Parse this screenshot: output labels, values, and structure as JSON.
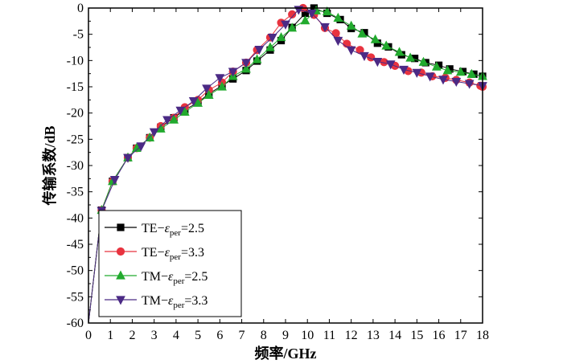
{
  "chart_data": {
    "type": "line",
    "xlabel": "频率/GHz",
    "ylabel": "传输系数/dB",
    "xlim": [
      0,
      18
    ],
    "ylim": [
      -60,
      0
    ],
    "xticks": [
      0,
      1,
      2,
      3,
      4,
      5,
      6,
      7,
      8,
      9,
      10,
      11,
      12,
      13,
      14,
      15,
      16,
      17,
      18
    ],
    "yticks": [
      0,
      -5,
      -10,
      -15,
      -20,
      -25,
      -30,
      -35,
      -40,
      -45,
      -50,
      -55,
      -60
    ],
    "grid": false,
    "legend_position": "bottom-left",
    "series": [
      {
        "name": "TE-εper=2.5",
        "legend": {
          "main": "TE−",
          "eps": "ε",
          "sub": "per",
          "value": "=2.5"
        },
        "color": "#000000",
        "marker": "square",
        "x": [
          0.0,
          0.6,
          1.1,
          1.8,
          2.2,
          2.8,
          3.3,
          3.9,
          4.4,
          5.0,
          5.5,
          6.1,
          6.6,
          7.2,
          7.7,
          8.3,
          8.8,
          9.3,
          9.9,
          10.3,
          10.9,
          11.5,
          12.0,
          12.6,
          13.2,
          13.7,
          14.3,
          14.9,
          15.4,
          16.0,
          16.5,
          17.1,
          17.6,
          18.0
        ],
        "y": [
          -60.0,
          -38.5,
          -33.0,
          -28.5,
          -26.7,
          -24.7,
          -22.7,
          -20.9,
          -19.4,
          -18.0,
          -16.3,
          -14.8,
          -13.5,
          -11.9,
          -10.1,
          -8.0,
          -6.2,
          -3.7,
          -1.0,
          0.0,
          -1.0,
          -2.2,
          -3.9,
          -4.7,
          -6.7,
          -7.4,
          -8.9,
          -9.6,
          -10.4,
          -10.9,
          -11.6,
          -12.1,
          -12.6,
          -13.0
        ]
      },
      {
        "name": "TE-εper=3.3",
        "legend": {
          "main": "TE−",
          "eps": "ε",
          "sub": "per",
          "value": "=3.3"
        },
        "color": "#e8333f",
        "marker": "circle",
        "x": [
          0.0,
          0.6,
          1.1,
          1.8,
          2.2,
          2.8,
          3.3,
          3.9,
          4.4,
          5.0,
          5.5,
          6.1,
          6.6,
          7.2,
          7.7,
          8.3,
          8.8,
          9.3,
          9.8,
          10.3,
          10.8,
          11.3,
          11.8,
          12.4,
          12.9,
          13.5,
          14.0,
          14.6,
          15.2,
          15.7,
          16.3,
          16.8,
          17.4,
          17.9,
          18.0
        ],
        "y": [
          -60.0,
          -38.5,
          -33.0,
          -28.5,
          -26.7,
          -24.7,
          -22.5,
          -20.9,
          -18.9,
          -17.5,
          -15.6,
          -14.2,
          -12.1,
          -10.4,
          -8.0,
          -5.6,
          -2.8,
          -1.2,
          0.0,
          -1.3,
          -3.8,
          -4.8,
          -6.8,
          -8.0,
          -9.4,
          -10.3,
          -11.0,
          -12.0,
          -12.3,
          -13.0,
          -13.3,
          -13.7,
          -14.2,
          -14.8,
          -15.0
        ]
      },
      {
        "name": "TM-εper=2.5",
        "legend": {
          "main": "TM−",
          "eps": "ε",
          "sub": "per",
          "value": "=2.5"
        },
        "color": "#22aa2e",
        "marker": "triangle-up",
        "x": [
          0.0,
          0.6,
          1.1,
          1.8,
          2.2,
          2.8,
          3.3,
          3.9,
          4.4,
          5.0,
          5.5,
          6.1,
          6.6,
          7.2,
          7.7,
          8.3,
          8.8,
          9.3,
          9.9,
          10.4,
          10.9,
          11.4,
          12.0,
          12.5,
          13.1,
          13.6,
          14.2,
          14.7,
          15.3,
          15.9,
          16.4,
          17.0,
          17.5,
          18.0
        ],
        "y": [
          -60.0,
          -38.5,
          -33.0,
          -28.5,
          -26.7,
          -24.7,
          -23.0,
          -21.3,
          -19.8,
          -18.1,
          -16.6,
          -15.0,
          -13.0,
          -11.6,
          -9.8,
          -7.5,
          -5.6,
          -3.8,
          -2.4,
          -0.5,
          -0.7,
          -1.9,
          -3.4,
          -4.9,
          -6.0,
          -7.2,
          -8.4,
          -9.5,
          -10.3,
          -11.2,
          -11.9,
          -12.2,
          -12.6,
          -13.0
        ]
      },
      {
        "name": "TM-εper=3.3",
        "legend": {
          "main": "TM−",
          "eps": "ε",
          "sub": "per",
          "value": "=3.3"
        },
        "color": "#4b2a85",
        "marker": "triangle-down",
        "x": [
          0.0,
          0.6,
          1.2,
          1.8,
          2.4,
          3.0,
          3.6,
          4.2,
          4.8,
          5.4,
          6.0,
          6.6,
          7.2,
          7.8,
          8.4,
          9.0,
          9.6,
          10.2,
          10.8,
          11.4,
          12.0,
          12.6,
          13.2,
          13.8,
          14.4,
          15.0,
          15.6,
          16.2,
          16.8,
          17.4,
          18.0
        ],
        "y": [
          -60.0,
          -38.6,
          -32.7,
          -28.5,
          -26.3,
          -23.6,
          -21.3,
          -19.5,
          -17.7,
          -15.3,
          -13.3,
          -12.1,
          -10.4,
          -7.9,
          -5.6,
          -3.1,
          -0.3,
          -1.0,
          -3.6,
          -6.2,
          -8.0,
          -9.1,
          -10.2,
          -10.7,
          -11.7,
          -12.3,
          -13.0,
          -13.6,
          -14.0,
          -14.4,
          -14.8
        ]
      }
    ]
  }
}
